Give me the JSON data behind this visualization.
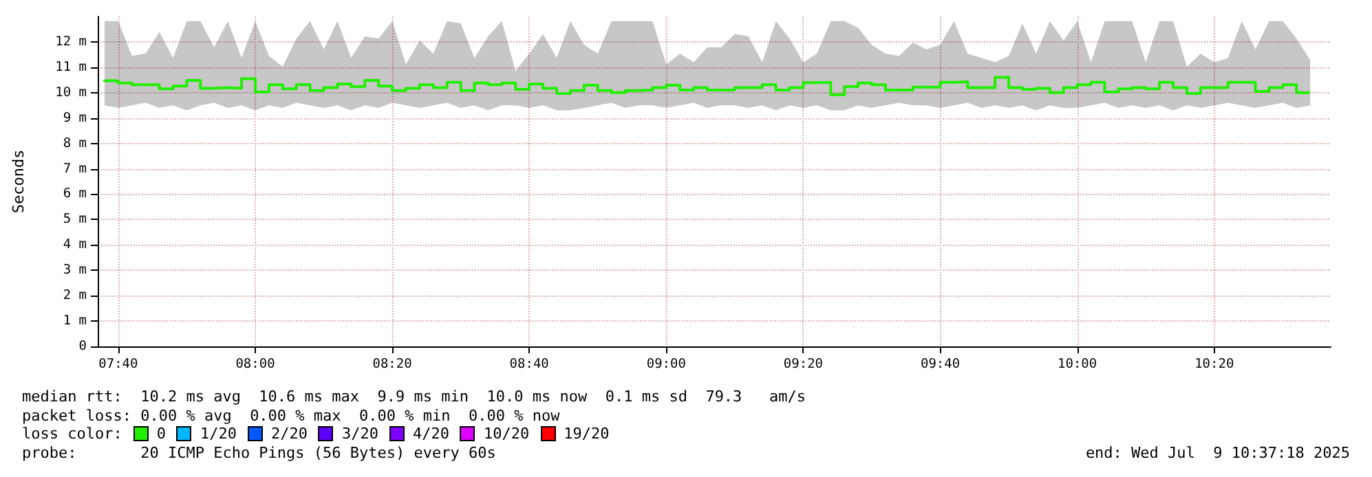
{
  "chart_data": {
    "type": "step",
    "ylabel": "Seconds",
    "xlim": [
      "2025-07-09T07:37",
      "2025-07-09T10:37"
    ],
    "xticks": [
      {
        "value": "2025-07-09T07:40",
        "label": "07:40"
      },
      {
        "value": "2025-07-09T08:00",
        "label": "08:00"
      },
      {
        "value": "2025-07-09T08:20",
        "label": "08:20"
      },
      {
        "value": "2025-07-09T08:40",
        "label": "08:40"
      },
      {
        "value": "2025-07-09T09:00",
        "label": "09:00"
      },
      {
        "value": "2025-07-09T09:20",
        "label": "09:20"
      },
      {
        "value": "2025-07-09T09:40",
        "label": "09:40"
      },
      {
        "value": "2025-07-09T10:00",
        "label": "10:00"
      },
      {
        "value": "2025-07-09T10:20",
        "label": "10:20"
      }
    ],
    "ylim": [
      0,
      13
    ],
    "yticks": [
      0,
      {
        "value": 1,
        "label": "1 m"
      },
      {
        "value": 2,
        "label": "2 m"
      },
      {
        "value": 3,
        "label": "3 m"
      },
      {
        "value": 4,
        "label": "4 m"
      },
      {
        "value": 5,
        "label": "5 m"
      },
      {
        "value": 6,
        "label": "6 m"
      },
      {
        "value": 7,
        "label": "7 m"
      },
      {
        "value": 8,
        "label": "8 m"
      },
      {
        "value": 9,
        "label": "9 m"
      },
      {
        "value": 10,
        "label": "10 m"
      },
      {
        "value": 11,
        "label": "11 m"
      },
      {
        "value": 12,
        "label": "12 m"
      }
    ],
    "grid": true,
    "legend": "bottom",
    "legend_title": "loss color:",
    "marker": "none",
    "line_style": "solid",
    "x": [
      "2025-07-09T07:38",
      "2025-07-09T07:40",
      "2025-07-09T07:42",
      "2025-07-09T07:44",
      "2025-07-09T07:46",
      "2025-07-09T07:48",
      "2025-07-09T07:50",
      "2025-07-09T07:52",
      "2025-07-09T07:54",
      "2025-07-09T07:56",
      "2025-07-09T07:58",
      "2025-07-09T08:00",
      "2025-07-09T08:02",
      "2025-07-09T08:04",
      "2025-07-09T08:06",
      "2025-07-09T08:08",
      "2025-07-09T08:10",
      "2025-07-09T08:12",
      "2025-07-09T08:14",
      "2025-07-09T08:16",
      "2025-07-09T08:18",
      "2025-07-09T08:20",
      "2025-07-09T08:22",
      "2025-07-09T08:24",
      "2025-07-09T08:26",
      "2025-07-09T08:28",
      "2025-07-09T08:30",
      "2025-07-09T08:32",
      "2025-07-09T08:34",
      "2025-07-09T08:36",
      "2025-07-09T08:38",
      "2025-07-09T08:40",
      "2025-07-09T08:42",
      "2025-07-09T08:44",
      "2025-07-09T08:46",
      "2025-07-09T08:48",
      "2025-07-09T08:50",
      "2025-07-09T08:52",
      "2025-07-09T08:54",
      "2025-07-09T08:56",
      "2025-07-09T08:58",
      "2025-07-09T09:00",
      "2025-07-09T09:02",
      "2025-07-09T09:04",
      "2025-07-09T09:06",
      "2025-07-09T09:08",
      "2025-07-09T09:10",
      "2025-07-09T09:12",
      "2025-07-09T09:14",
      "2025-07-09T09:16",
      "2025-07-09T09:18",
      "2025-07-09T09:20",
      "2025-07-09T09:22",
      "2025-07-09T09:24",
      "2025-07-09T09:26",
      "2025-07-09T09:28",
      "2025-07-09T09:30",
      "2025-07-09T09:32",
      "2025-07-09T09:34",
      "2025-07-09T09:36",
      "2025-07-09T09:38",
      "2025-07-09T09:40",
      "2025-07-09T09:42",
      "2025-07-09T09:44",
      "2025-07-09T09:46",
      "2025-07-09T09:48",
      "2025-07-09T09:50",
      "2025-07-09T09:52",
      "2025-07-09T09:54",
      "2025-07-09T09:56",
      "2025-07-09T09:58",
      "2025-07-09T10:00",
      "2025-07-09T10:02",
      "2025-07-09T10:04",
      "2025-07-09T10:06",
      "2025-07-09T10:08",
      "2025-07-09T10:10",
      "2025-07-09T10:12",
      "2025-07-09T10:14",
      "2025-07-09T10:16",
      "2025-07-09T10:18",
      "2025-07-09T10:20",
      "2025-07-09T10:22",
      "2025-07-09T10:24",
      "2025-07-09T10:26",
      "2025-07-09T10:28",
      "2025-07-09T10:30",
      "2025-07-09T10:32",
      "2025-07-09T10:34"
    ],
    "series": [
      {
        "name": "0",
        "color": "#22ee00",
        "values": [
          10.43,
          10.47,
          10.38,
          10.31,
          10.31,
          10.15,
          10.26,
          10.48,
          10.17,
          10.2,
          10.17,
          10.55,
          10.03,
          10.31,
          10.15,
          10.31,
          10.08,
          10.2,
          10.34,
          10.24,
          10.48,
          10.26,
          10.08,
          10.17,
          10.31,
          10.2,
          10.41,
          10.08,
          10.38,
          10.31,
          10.38,
          10.13,
          10.34,
          10.17,
          9.97,
          10.08,
          10.29,
          10.08,
          10.0,
          10.08,
          10.1,
          10.2,
          10.29,
          10.1,
          10.2,
          10.1,
          10.1,
          10.2,
          10.2,
          10.31,
          10.1,
          10.2,
          10.39,
          10.41,
          9.92,
          10.24,
          10.38,
          10.31,
          10.1,
          10.1,
          10.22,
          10.22,
          10.41,
          10.43,
          10.2,
          10.2,
          10.6,
          10.2,
          10.13,
          10.17,
          10.0,
          10.2,
          10.31,
          10.41,
          10.03,
          10.15,
          10.2,
          10.15,
          10.41,
          10.2,
          9.97,
          10.2,
          10.2,
          10.41,
          10.41,
          10.05,
          10.2,
          10.31,
          10.0
        ],
        "lower": [
          9.5,
          9.4,
          9.5,
          9.6,
          9.4,
          9.5,
          9.3,
          9.5,
          9.6,
          9.4,
          9.5,
          9.3,
          9.5,
          9.4,
          9.6,
          9.5,
          9.4,
          9.5,
          9.3,
          9.5,
          9.4,
          9.6,
          9.5,
          9.4,
          9.5,
          9.6,
          9.4,
          9.5,
          9.3,
          9.5,
          9.5,
          9.4,
          9.5,
          9.3,
          9.3,
          9.4,
          9.5,
          9.6,
          9.4,
          9.5,
          9.5,
          9.4,
          9.5,
          9.6,
          9.4,
          9.5,
          9.5,
          9.4,
          9.5,
          9.3,
          9.5,
          9.4,
          9.5,
          9.3,
          9.3,
          9.5,
          9.4,
          9.5,
          9.6,
          9.5,
          9.5,
          9.4,
          9.5,
          9.6,
          9.4,
          9.5,
          9.4,
          9.5,
          9.3,
          9.5,
          9.4,
          9.4,
          9.5,
          9.6,
          9.4,
          9.5,
          9.4,
          9.5,
          9.3,
          9.5,
          9.4,
          9.5,
          9.6,
          9.5,
          9.4,
          9.5,
          9.6,
          9.4,
          9.5
        ],
        "upper": [
          12.82,
          12.82,
          11.45,
          11.54,
          12.39,
          11.37,
          12.82,
          12.82,
          11.79,
          12.82,
          11.37,
          12.82,
          11.45,
          11.02,
          12.13,
          12.82,
          11.71,
          12.82,
          11.37,
          12.22,
          12.13,
          12.82,
          11.11,
          12.05,
          11.54,
          12.82,
          12.73,
          11.37,
          12.22,
          12.82,
          10.85,
          11.54,
          12.31,
          11.37,
          12.82,
          11.88,
          11.54,
          12.82,
          12.82,
          12.82,
          12.82,
          11.11,
          11.54,
          11.2,
          11.79,
          11.79,
          12.31,
          12.22,
          11.2,
          12.82,
          12.13,
          11.2,
          11.54,
          12.82,
          12.82,
          12.56,
          11.88,
          11.54,
          11.45,
          11.97,
          11.71,
          11.88,
          12.82,
          11.54,
          11.37,
          11.2,
          11.45,
          12.73,
          11.54,
          12.82,
          12.05,
          12.82,
          11.2,
          12.82,
          12.82,
          12.82,
          11.2,
          12.82,
          12.82,
          11.02,
          11.54,
          11.2,
          11.37,
          12.82,
          11.71,
          12.82,
          12.82,
          12.13,
          11.28
        ]
      },
      {
        "name": "1/20",
        "color": "#00b8ff",
        "values": [
          null,
          null,
          null,
          null,
          null,
          null,
          null,
          null,
          null,
          null,
          null,
          null,
          null,
          null,
          null,
          null,
          null,
          null,
          null,
          null,
          null,
          null,
          null,
          null,
          null,
          null,
          null,
          null,
          null,
          null,
          null,
          null,
          null,
          null,
          null,
          null,
          null,
          null,
          null,
          null,
          null,
          null,
          null,
          null,
          null,
          null,
          null,
          null,
          null,
          null,
          null,
          null,
          null,
          null,
          null,
          null,
          null,
          null,
          null,
          null,
          null,
          null,
          null,
          null,
          null,
          null,
          null,
          null,
          null,
          null,
          null,
          null,
          null,
          null,
          null,
          null,
          null,
          null,
          null,
          null,
          null,
          null,
          null,
          null,
          null,
          null,
          null,
          null,
          null
        ]
      },
      {
        "name": "2/20",
        "color": "#0059ff",
        "values": [
          null,
          null,
          null,
          null,
          null,
          null,
          null,
          null,
          null,
          null,
          null,
          null,
          null,
          null,
          null,
          null,
          null,
          null,
          null,
          null,
          null,
          null,
          null,
          null,
          null,
          null,
          null,
          null,
          null,
          null,
          null,
          null,
          null,
          null,
          null,
          null,
          null,
          null,
          null,
          null,
          null,
          null,
          null,
          null,
          null,
          null,
          null,
          null,
          null,
          null,
          null,
          null,
          null,
          null,
          null,
          null,
          null,
          null,
          null,
          null,
          null,
          null,
          null,
          null,
          null,
          null,
          null,
          null,
          null,
          null,
          null,
          null,
          null,
          null,
          null,
          null,
          null,
          null,
          null,
          null,
          null,
          null,
          null,
          null,
          null,
          null,
          null,
          null,
          null
        ]
      },
      {
        "name": "3/20",
        "color": "#5e00ff",
        "values": [
          null,
          null,
          null,
          null,
          null,
          null,
          null,
          null,
          null,
          null,
          null,
          null,
          null,
          null,
          null,
          null,
          null,
          null,
          null,
          null,
          null,
          null,
          null,
          null,
          null,
          null,
          null,
          null,
          null,
          null,
          null,
          null,
          null,
          null,
          null,
          null,
          null,
          null,
          null,
          null,
          null,
          null,
          null,
          null,
          null,
          null,
          null,
          null,
          null,
          null,
          null,
          null,
          null,
          null,
          null,
          null,
          null,
          null,
          null,
          null,
          null,
          null,
          null,
          null,
          null,
          null,
          null,
          null,
          null,
          null,
          null,
          null,
          null,
          null,
          null,
          null,
          null,
          null,
          null,
          null,
          null,
          null,
          null,
          null,
          null,
          null,
          null,
          null,
          null
        ]
      },
      {
        "name": "4/20",
        "color": "#7e00ff",
        "values": [
          null,
          null,
          null,
          null,
          null,
          null,
          null,
          null,
          null,
          null,
          null,
          null,
          null,
          null,
          null,
          null,
          null,
          null,
          null,
          null,
          null,
          null,
          null,
          null,
          null,
          null,
          null,
          null,
          null,
          null,
          null,
          null,
          null,
          null,
          null,
          null,
          null,
          null,
          null,
          null,
          null,
          null,
          null,
          null,
          null,
          null,
          null,
          null,
          null,
          null,
          null,
          null,
          null,
          null,
          null,
          null,
          null,
          null,
          null,
          null,
          null,
          null,
          null,
          null,
          null,
          null,
          null,
          null,
          null,
          null,
          null,
          null,
          null,
          null,
          null,
          null,
          null,
          null,
          null,
          null,
          null,
          null,
          null,
          null,
          null,
          null,
          null,
          null,
          null
        ]
      },
      {
        "name": "10/20",
        "color": "#dd00ff",
        "values": [
          null,
          null,
          null,
          null,
          null,
          null,
          null,
          null,
          null,
          null,
          null,
          null,
          null,
          null,
          null,
          null,
          null,
          null,
          null,
          null,
          null,
          null,
          null,
          null,
          null,
          null,
          null,
          null,
          null,
          null,
          null,
          null,
          null,
          null,
          null,
          null,
          null,
          null,
          null,
          null,
          null,
          null,
          null,
          null,
          null,
          null,
          null,
          null,
          null,
          null,
          null,
          null,
          null,
          null,
          null,
          null,
          null,
          null,
          null,
          null,
          null,
          null,
          null,
          null,
          null,
          null,
          null,
          null,
          null,
          null,
          null,
          null,
          null,
          null,
          null,
          null,
          null,
          null,
          null,
          null,
          null,
          null,
          null,
          null,
          null,
          null,
          null,
          null,
          null
        ]
      },
      {
        "name": "19/20",
        "color": "#ff0000",
        "values": [
          null,
          null,
          null,
          null,
          null,
          null,
          null,
          null,
          null,
          null,
          null,
          null,
          null,
          null,
          null,
          null,
          null,
          null,
          null,
          null,
          null,
          null,
          null,
          null,
          null,
          null,
          null,
          null,
          null,
          null,
          null,
          null,
          null,
          null,
          null,
          null,
          null,
          null,
          null,
          null,
          null,
          null,
          null,
          null,
          null,
          null,
          null,
          null,
          null,
          null,
          null,
          null,
          null,
          null,
          null,
          null,
          null,
          null,
          null,
          null,
          null,
          null,
          null,
          null,
          null,
          null,
          null,
          null,
          null,
          null,
          null,
          null,
          null,
          null,
          null,
          null,
          null,
          null,
          null,
          null,
          null,
          null,
          null,
          null,
          null,
          null,
          null,
          null,
          null
        ]
      }
    ],
    "annotations": [
      "median rtt:  10.2 ms avg  10.6 ms max  9.9 ms min  10.0 ms now  0.1 ms sd  79.3   am/s",
      "packet loss: 0.00 % avg  0.00 % max  0.00 % min  0.00 % now",
      "probe:       20 ICMP Echo Pings (56 Bytes) every 60s",
      "end: Wed Jul  9 10:37:18 2025"
    ]
  }
}
